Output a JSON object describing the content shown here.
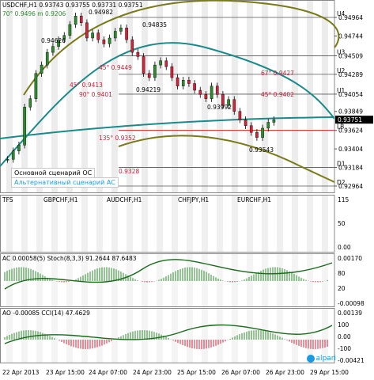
{
  "header": {
    "symbol_line": "USDCHF,H1  0.93743 0.93755 0.93731 0.93751",
    "topleft_level": "70° 0.9496 m 0.9206"
  },
  "price_axis": {
    "labels": [
      "0.94964",
      "0.94744",
      "0.94509",
      "0.94289",
      "0.94054",
      "0.93849",
      "0.93624",
      "0.93404",
      "0.93184",
      "0.92964"
    ],
    "current_price": "0.93751",
    "level_tags": [
      "U4",
      "U3",
      "U2",
      "U1",
      "LB",
      "D1",
      "D2"
    ]
  },
  "annotations": {
    "price_points": [
      "0.94982",
      "0.94835",
      "0.94626",
      "0.94219",
      "0.93992",
      "0.93543"
    ],
    "angle_labels": [
      "45° 0.9449",
      "45° 0.9413",
      "90° 0.9401",
      "67° 0.9427",
      "45° 0.9402",
      "135° 0.9352",
      "0.9328"
    ]
  },
  "legend": {
    "main_scenario": "Основной сценарий OC",
    "alt_scenario": "Альтернативный сценарий AC",
    "main_color": "#333333",
    "alt_color": "#1a9be0"
  },
  "subcharts": {
    "tfs": {
      "label": "TFS",
      "pairs": [
        "GBPCHF,H1",
        "AUDCHF,H1",
        "CHFJPY,H1",
        "EURCHF,H1"
      ],
      "axis": [
        "115",
        "50",
        "0.00"
      ]
    },
    "ac": {
      "label": "AC 0.00058(5)  Stoch(8,3,3) 91.2644 87.6483",
      "axis": [
        "0.00170",
        "80",
        "20",
        "-0.00098"
      ]
    },
    "ao": {
      "label": "AO -0.00085  CCI(14) 47.4629",
      "axis": [
        "0.00139",
        "100",
        "0.00",
        "-100",
        "-0.00421"
      ]
    }
  },
  "time_axis": [
    "22 Apr 2013",
    "23 Apr 15:00",
    "24 Apr 07:00",
    "24 Apr 23:00",
    "25 Apr 15:00",
    "26 Apr 07:00",
    "26 Apr 23:00",
    "29 Apr 15:00"
  ],
  "brand": "alpari",
  "chart_data": {
    "type": "candlestick",
    "title": "USDCHF,H1",
    "ylim": [
      0.92964,
      0.94964
    ],
    "price_path": [
      0.9328,
      0.9338,
      0.9345,
      0.939,
      0.94,
      0.943,
      0.944,
      0.9455,
      0.9462,
      0.947,
      0.9475,
      0.9488,
      0.9498,
      0.949,
      0.9472,
      0.9478,
      0.947,
      0.9465,
      0.9472,
      0.948,
      0.9484,
      0.947,
      0.9455,
      0.945,
      0.943,
      0.9425,
      0.944,
      0.9445,
      0.9438,
      0.9425,
      0.9415,
      0.9422,
      0.9418,
      0.941,
      0.9405,
      0.94,
      0.9415,
      0.9405,
      0.9392,
      0.9399,
      0.9385,
      0.9375,
      0.9368,
      0.936,
      0.9354,
      0.9365,
      0.9372,
      0.9375
    ],
    "levels": {
      "U4": 0.94964,
      "U3": 0.94509,
      "U2": 0.94289,
      "U1": 0.94054,
      "LB": 0.93624,
      "D1": 0.93184,
      "D2": 0.92964
    },
    "subcharts": [
      "TFS",
      "AC / Stoch(8,3,3)",
      "AO / CCI(14)"
    ]
  }
}
